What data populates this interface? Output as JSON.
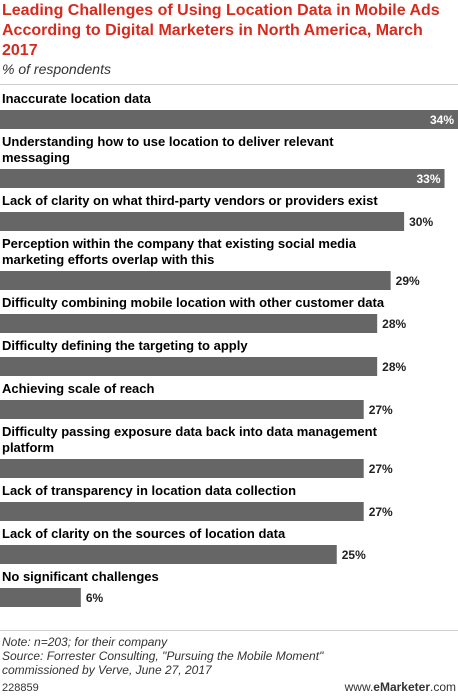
{
  "header": {
    "title": "Leading Challenges of Using Location Data in Mobile Ads According to Digital Marketers in North America, March 2017",
    "subtitle": "% of respondents"
  },
  "footer": {
    "note": "Note: n=203; for their company",
    "source_line1": "Source: Forrester Consulting, \"Pursuing the Mobile Moment\"",
    "source_line2": "commissioned by Verve, June 27, 2017",
    "chart_id": "228859",
    "brand_prefix": "www.",
    "brand_name": "eMarketer",
    "brand_suffix": ".com"
  },
  "chart_data": {
    "type": "bar",
    "orientation": "horizontal",
    "categories": [
      [
        "Inaccurate location data"
      ],
      [
        "Understanding how to use location to deliver relevant",
        "messaging"
      ],
      [
        "Lack of clarity on what third-party vendors or providers exist"
      ],
      [
        "Perception within the company that existing social media",
        "marketing efforts overlap with this"
      ],
      [
        "Difficulty combining mobile location with other customer data"
      ],
      [
        "Difficulty defining the targeting to apply"
      ],
      [
        "Achieving scale of reach"
      ],
      [
        "Difficulty passing exposure data back into data management",
        "platform"
      ],
      [
        "Lack of transparency in location data collection"
      ],
      [
        "Lack of clarity on the sources of location data"
      ],
      [
        "No significant challenges"
      ]
    ],
    "values": [
      34,
      33,
      30,
      29,
      28,
      28,
      27,
      27,
      27,
      25,
      6
    ],
    "value_labels": [
      "34%",
      "33%",
      "30%",
      "29%",
      "28%",
      "28%",
      "27%",
      "27%",
      "27%",
      "25%",
      "6%"
    ],
    "xlim": [
      0,
      34
    ],
    "bar_color": "#666666",
    "label_color_inside": "#ffffff",
    "label_color_outside": "#222222"
  }
}
